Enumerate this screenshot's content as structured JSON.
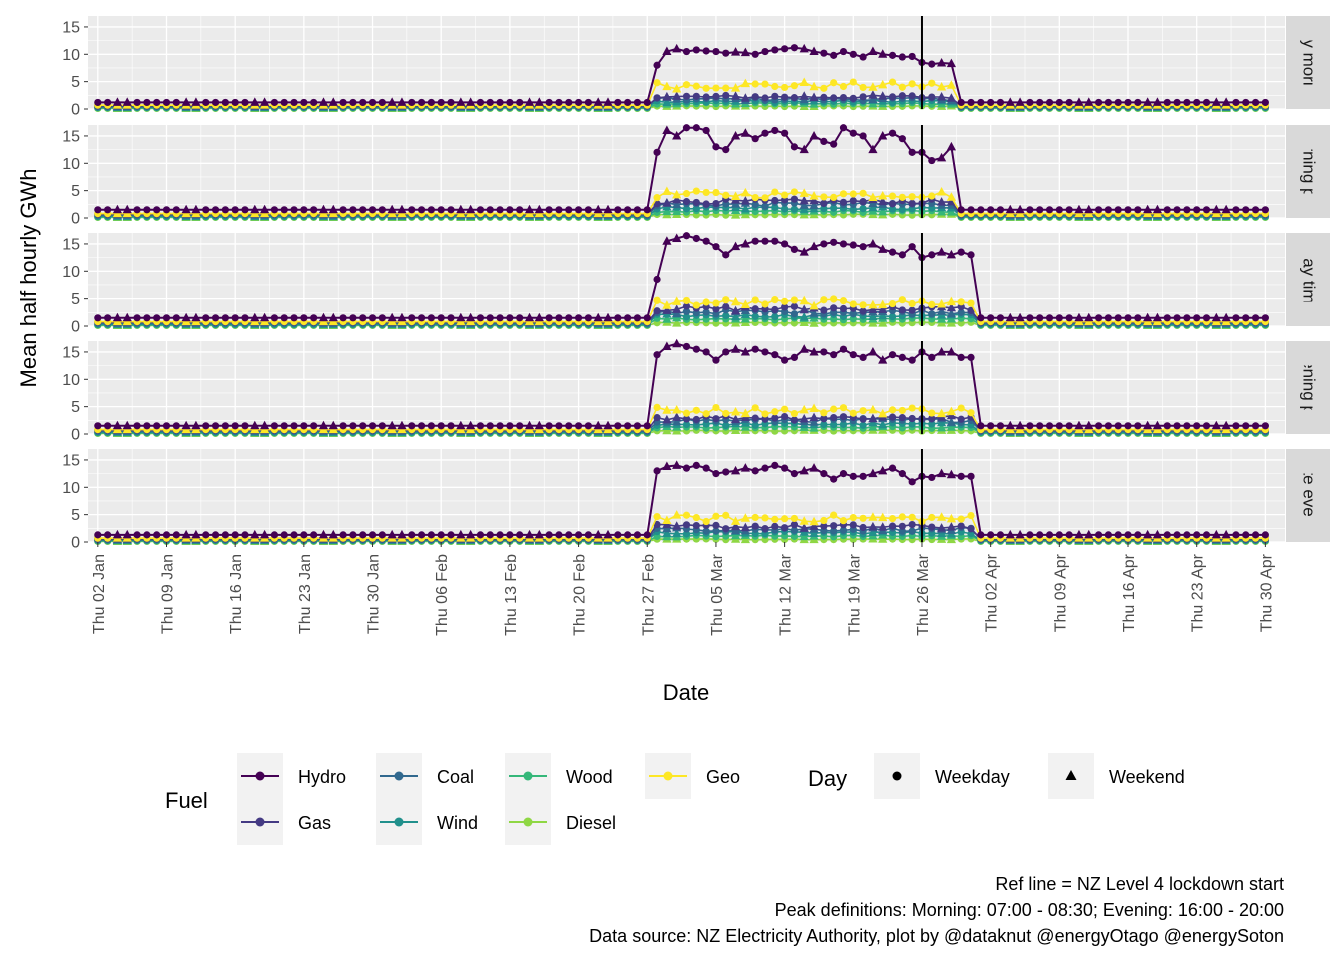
{
  "chart_data": {
    "type": "line",
    "xlabel": "Date",
    "ylabel": "Mean half hourly GWh",
    "x_ticks": [
      "Thu 02 Jan",
      "Thu 09 Jan",
      "Thu 16 Jan",
      "Thu 23 Jan",
      "Thu 30 Jan",
      "Thu 06 Feb",
      "Thu 13 Feb",
      "Thu 20 Feb",
      "Thu 27 Feb",
      "Thu 05 Mar",
      "Thu 12 Mar",
      "Thu 19 Mar",
      "Thu 26 Mar",
      "Thu 02 Apr",
      "Thu 09 Apr",
      "Thu 16 Apr",
      "Thu 23 Apr",
      "Thu 30 Apr"
    ],
    "y_ticks": [
      0,
      5,
      10,
      15
    ],
    "ylim": [
      0,
      17
    ],
    "xlim": [
      "2020-01-01",
      "2020-05-02"
    ],
    "x_start": "2020-01-02",
    "x_end": "2020-04-30",
    "ref_line_date": "2020-03-26",
    "elevated_period": [
      "2020-02-28",
      "2020-03-30"
    ],
    "grid": true,
    "legend_position": "bottom",
    "panels": [
      {
        "label": "Early morning",
        "strip_text": "rly morni",
        "baseline": {
          "Hydro": 1.2,
          "Gas": 0.6,
          "Coal": 0.4,
          "Wind": 0.3,
          "Wood": 0.2,
          "Diesel": 0.1,
          "Geo": 0.7
        },
        "elevated_end": "2020-03-29",
        "hydro_elevated": [
          8,
          10.5,
          11,
          10.5,
          10.8,
          10.6,
          10.5,
          10.2,
          10.4,
          10.3,
          10,
          10.5,
          10.8,
          11,
          11.2,
          11,
          10.5,
          10.2,
          9.8,
          10.5,
          10,
          9.5,
          10.5,
          10,
          9.8,
          9.5,
          9.6,
          8.5,
          8.2,
          8.4,
          8.3,
          8.5
        ],
        "elevated": {
          "Gas": 2.2,
          "Coal": 1.8,
          "Wind": 1.4,
          "Wood": 1.0,
          "Diesel": 0.5,
          "Geo": 4.3
        }
      },
      {
        "label": "Morning peak",
        "strip_text": "orning pe",
        "baseline": {
          "Hydro": 1.5,
          "Gas": 0.7,
          "Coal": 0.5,
          "Wind": 0.3,
          "Wood": 0.2,
          "Diesel": 0.1,
          "Geo": 0.8
        },
        "elevated_end": "2020-03-29",
        "hydro_elevated": [
          12,
          16,
          15,
          16.5,
          16.5,
          16,
          13,
          12.5,
          15,
          15.5,
          14.5,
          15.5,
          16,
          15.5,
          13,
          12.5,
          15,
          14,
          13.5,
          16.5,
          15.5,
          15,
          12.5,
          15,
          15.5,
          14.5,
          12,
          12,
          10.5,
          11,
          13,
          12
        ],
        "elevated": {
          "Gas": 3.0,
          "Coal": 2.5,
          "Wind": 1.8,
          "Wood": 1.2,
          "Diesel": 0.6,
          "Geo": 4.3
        }
      },
      {
        "label": "Day time",
        "strip_text": "Day time",
        "baseline": {
          "Hydro": 1.5,
          "Gas": 0.7,
          "Coal": 0.5,
          "Wind": 0.3,
          "Wood": 0.2,
          "Diesel": 0.1,
          "Geo": 0.8
        },
        "elevated_end": "2020-03-31",
        "hydro_elevated": [
          8.5,
          15.5,
          16,
          16.5,
          16,
          15.5,
          14.5,
          13,
          14.5,
          15,
          15.5,
          15.5,
          15.5,
          15,
          14,
          13.5,
          14.5,
          15,
          15.3,
          15,
          14.8,
          14.5,
          15,
          14,
          13.5,
          13,
          14.5,
          12.5,
          13,
          13.5,
          13,
          13.5,
          13,
          6
        ],
        "elevated": {
          "Gas": 3.2,
          "Coal": 2.6,
          "Wind": 1.9,
          "Wood": 1.3,
          "Diesel": 0.6,
          "Geo": 4.3
        }
      },
      {
        "label": "Evening peak",
        "strip_text": "vening pe",
        "baseline": {
          "Hydro": 1.5,
          "Gas": 0.7,
          "Coal": 0.5,
          "Wind": 0.3,
          "Wood": 0.2,
          "Diesel": 0.1,
          "Geo": 0.8
        },
        "elevated_end": "2020-03-31",
        "hydro_elevated": [
          14.5,
          16,
          16.5,
          16,
          15.5,
          15,
          13.5,
          15,
          15.5,
          15,
          15.5,
          15,
          14.5,
          13.5,
          14,
          15.5,
          15,
          15,
          14.5,
          15.5,
          14.5,
          14,
          15,
          13.5,
          14.5,
          14,
          13.5,
          15,
          14,
          15,
          15,
          14
        ],
        "elevated": {
          "Gas": 3.0,
          "Coal": 2.5,
          "Wind": 1.8,
          "Wood": 1.2,
          "Diesel": 0.6,
          "Geo": 4.3
        }
      },
      {
        "label": "Late evening",
        "strip_text": "ate eveni",
        "baseline": {
          "Hydro": 1.3,
          "Gas": 0.6,
          "Coal": 0.4,
          "Wind": 0.3,
          "Wood": 0.2,
          "Diesel": 0.1,
          "Geo": 0.7
        },
        "elevated_end": "2020-03-31",
        "hydro_elevated": [
          13,
          13.8,
          14,
          13.5,
          14,
          13.5,
          12.5,
          12.8,
          13,
          13.5,
          13,
          13.5,
          14,
          13.5,
          12.5,
          13,
          13.5,
          12.5,
          11.5,
          12.5,
          12,
          12,
          12.5,
          13,
          13.5,
          12.5,
          11,
          12,
          11.8,
          12.5,
          12.3,
          12
        ],
        "elevated": {
          "Gas": 2.8,
          "Coal": 2.3,
          "Wind": 1.7,
          "Wood": 1.1,
          "Diesel": 0.5,
          "Geo": 4.3
        }
      }
    ],
    "series": [
      {
        "name": "Hydro",
        "color": "#440154"
      },
      {
        "name": "Gas",
        "color": "#443A83"
      },
      {
        "name": "Coal",
        "color": "#31688E"
      },
      {
        "name": "Wind",
        "color": "#21908C"
      },
      {
        "name": "Wood",
        "color": "#35B779"
      },
      {
        "name": "Diesel",
        "color": "#8FD744"
      },
      {
        "name": "Geo",
        "color": "#FDE725"
      }
    ],
    "shape_legend": {
      "title": "Day",
      "items": [
        {
          "name": "Weekday",
          "shape": "circle"
        },
        {
          "name": "Weekend",
          "shape": "triangle"
        }
      ]
    },
    "fill_legend_title": "Fuel",
    "caption": [
      "Ref line = NZ Level 4 lockdown start",
      "Peak definitions: Morning: 07:00 - 08:30; Evening: 16:00 - 20:00",
      "Data source: NZ Electricity Authority, plot by @dataknut @energyOtago @energySoton"
    ],
    "panel_background": "#EBEBEB",
    "strip_background": "#D9D9D9"
  }
}
